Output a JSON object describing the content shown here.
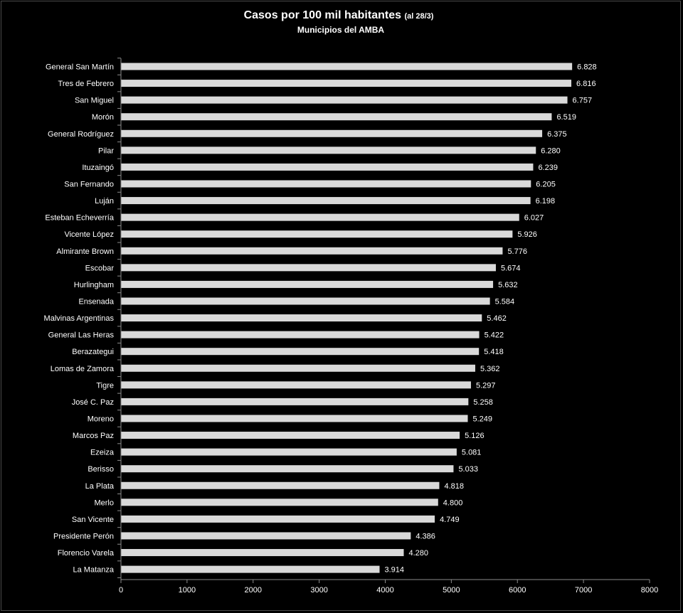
{
  "colors": {
    "background": "#000000",
    "bar": "#d9d9d9",
    "text": "#ffffff",
    "axis": "#8c8c8c"
  },
  "chart_data": {
    "type": "bar",
    "orientation": "horizontal",
    "title": "Casos por 100 mil habitantes",
    "title_note": "(al 28/3)",
    "subtitle": "Municipios del AMBA",
    "xlim": [
      0,
      8000
    ],
    "xticks": [
      "0",
      "1000",
      "2000",
      "3000",
      "4000",
      "5000",
      "6000",
      "7000",
      "8000"
    ],
    "grid": false,
    "categories": [
      "General San Martín",
      "Tres de Febrero",
      "San Miguel",
      "Morón",
      "General Rodríguez",
      "Pilar",
      "Ituzaingó",
      "San Fernando",
      "Luján",
      "Esteban Echeverría",
      "Vicente López",
      "Almirante Brown",
      "Escobar",
      "Hurlingham",
      "Ensenada",
      "Malvinas Argentinas",
      "General Las Heras",
      "Berazategui",
      "Lomas de Zamora",
      "Tigre",
      "José C. Paz",
      "Moreno",
      "Marcos Paz",
      "Ezeiza",
      "Berisso",
      "La Plata",
      "Merlo",
      "San Vicente",
      "Presidente Perón",
      "Florencio Varela",
      "La Matanza"
    ],
    "values": [
      6828,
      6816,
      6757,
      6519,
      6375,
      6280,
      6239,
      6205,
      6198,
      6027,
      5926,
      5776,
      5674,
      5632,
      5584,
      5462,
      5422,
      5418,
      5362,
      5297,
      5258,
      5249,
      5126,
      5081,
      5033,
      4818,
      4800,
      4749,
      4386,
      4280,
      3914
    ],
    "value_labels": [
      "6.828",
      "6.816",
      "6.757",
      "6.519",
      "6.375",
      "6.280",
      "6.239",
      "6.205",
      "6.198",
      "6.027",
      "5.926",
      "5.776",
      "5.674",
      "5.632",
      "5.584",
      "5.462",
      "5.422",
      "5.418",
      "5.362",
      "5.297",
      "5.258",
      "5.249",
      "5.126",
      "5.081",
      "5.033",
      "4.818",
      "4.800",
      "4.749",
      "4.386",
      "4.280",
      "3.914"
    ]
  }
}
